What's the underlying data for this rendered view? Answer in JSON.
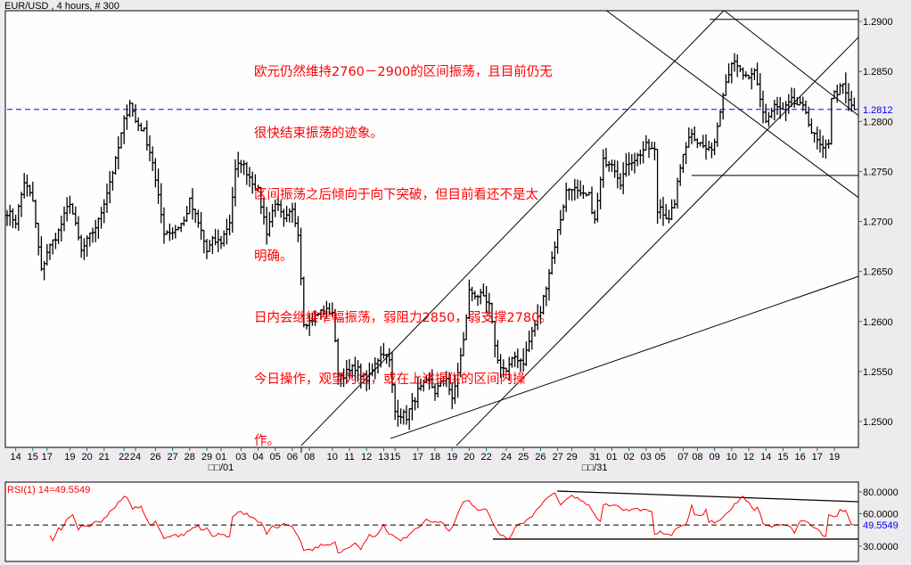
{
  "header": {
    "title": "EUR/USD , 4 hours, # 300"
  },
  "annotation": {
    "lines": [
      "欧元仍然维持2760－2900的区间振荡，且目前仍无",
      "很快结束振荡的迹象。",
      "区间振荡之后倾向于向下突破，但目前看还不是太",
      "明确。",
      "日内会继续窄幅振荡，弱阻力2850，弱支撑2780。",
      "今日操作，观望为主，或在上述提供的区间内操",
      "作。"
    ],
    "color": "#FF0000"
  },
  "chart_data": [
    {
      "type": "ohlc-bar",
      "title": "EUR/USD , 4 hours, # 300",
      "bar_count": 298,
      "ylim": [
        1.2475,
        1.291
      ],
      "y_ticks": [
        "1.2900",
        "1.2850",
        "1.2800",
        "1.2750",
        "1.2700",
        "1.2650",
        "1.2600",
        "1.2550",
        "1.2500"
      ],
      "last_price": {
        "label": "1.2812",
        "value": 1.2812,
        "color": "#0000FF"
      },
      "x_ticks": [
        {
          "bar": 3,
          "label": "14"
        },
        {
          "bar": 9,
          "label": "15"
        },
        {
          "bar": 14,
          "label": "17"
        },
        {
          "bar": 22,
          "label": "19"
        },
        {
          "bar": 28,
          "label": "20"
        },
        {
          "bar": 34,
          "label": "21"
        },
        {
          "bar": 41,
          "label": "22"
        },
        {
          "bar": 45,
          "label": "24"
        },
        {
          "bar": 52,
          "label": "26"
        },
        {
          "bar": 58,
          "label": "27"
        },
        {
          "bar": 64,
          "label": "28"
        },
        {
          "bar": 70,
          "label": "29"
        },
        {
          "bar": 75,
          "label": "01"
        },
        {
          "bar": 82,
          "label": "03"
        },
        {
          "bar": 88,
          "label": "04"
        },
        {
          "bar": 94,
          "label": "05"
        },
        {
          "bar": 100,
          "label": "06"
        },
        {
          "bar": 106,
          "label": "08"
        },
        {
          "bar": 114,
          "label": "10"
        },
        {
          "bar": 120,
          "label": "11"
        },
        {
          "bar": 126,
          "label": "12"
        },
        {
          "bar": 132,
          "label": "13"
        },
        {
          "bar": 136,
          "label": "15"
        },
        {
          "bar": 144,
          "label": "17"
        },
        {
          "bar": 150,
          "label": "18"
        },
        {
          "bar": 156,
          "label": "19"
        },
        {
          "bar": 162,
          "label": "20"
        },
        {
          "bar": 168,
          "label": "22"
        },
        {
          "bar": 175,
          "label": "24"
        },
        {
          "bar": 181,
          "label": "25"
        },
        {
          "bar": 187,
          "label": "26"
        },
        {
          "bar": 193,
          "label": "27"
        },
        {
          "bar": 198,
          "label": "29"
        },
        {
          "bar": 206,
          "label": "31"
        },
        {
          "bar": 212,
          "label": "01"
        },
        {
          "bar": 218,
          "label": "02"
        },
        {
          "bar": 224,
          "label": "03"
        },
        {
          "bar": 229,
          "label": "05"
        },
        {
          "bar": 237,
          "label": "07"
        },
        {
          "bar": 242,
          "label": "08"
        },
        {
          "bar": 248,
          "label": "09"
        },
        {
          "bar": 254,
          "label": "10"
        },
        {
          "bar": 260,
          "label": "12"
        },
        {
          "bar": 266,
          "label": "14"
        },
        {
          "bar": 272,
          "label": "15"
        },
        {
          "bar": 278,
          "label": "16"
        },
        {
          "bar": 284,
          "label": "17"
        },
        {
          "bar": 290,
          "label": "19"
        }
      ],
      "month_labels": [
        {
          "bar": 75,
          "label": "□□/01"
        },
        {
          "bar": 206,
          "label": "□□/31"
        }
      ],
      "close_path": [
        [
          0,
          1.271
        ],
        [
          3,
          1.27
        ],
        [
          6,
          1.274
        ],
        [
          9,
          1.272
        ],
        [
          12,
          1.265
        ],
        [
          14,
          1.267
        ],
        [
          18,
          1.269
        ],
        [
          22,
          1.272
        ],
        [
          26,
          1.267
        ],
        [
          28,
          1.268
        ],
        [
          32,
          1.27
        ],
        [
          34,
          1.272
        ],
        [
          38,
          1.276
        ],
        [
          41,
          1.28
        ],
        [
          43,
          1.282
        ],
        [
          45,
          1.28
        ],
        [
          48,
          1.279
        ],
        [
          51,
          1.276
        ],
        [
          52,
          1.274
        ],
        [
          55,
          1.269
        ],
        [
          58,
          1.269
        ],
        [
          62,
          1.27
        ],
        [
          64,
          1.272
        ],
        [
          68,
          1.269
        ],
        [
          70,
          1.267
        ],
        [
          72,
          1.268
        ],
        [
          75,
          1.268
        ],
        [
          78,
          1.27
        ],
        [
          80,
          1.275
        ],
        [
          82,
          1.276
        ],
        [
          86,
          1.274
        ],
        [
          88,
          1.273
        ],
        [
          91,
          1.269
        ],
        [
          94,
          1.272
        ],
        [
          97,
          1.27
        ],
        [
          100,
          1.271
        ],
        [
          102,
          1.269
        ],
        [
          104,
          1.26
        ],
        [
          106,
          1.26
        ],
        [
          110,
          1.261
        ],
        [
          114,
          1.261
        ],
        [
          116,
          1.2545
        ],
        [
          120,
          1.255
        ],
        [
          122,
          1.2555
        ],
        [
          126,
          1.254
        ],
        [
          129,
          1.256
        ],
        [
          132,
          1.257
        ],
        [
          134,
          1.256
        ],
        [
          136,
          1.251
        ],
        [
          140,
          1.2505
        ],
        [
          144,
          1.253
        ],
        [
          148,
          1.254
        ],
        [
          150,
          1.253
        ],
        [
          154,
          1.2545
        ],
        [
          156,
          1.252
        ],
        [
          160,
          1.258
        ],
        [
          162,
          1.263
        ],
        [
          166,
          1.2625
        ],
        [
          169,
          1.2615
        ],
        [
          172,
          1.256
        ],
        [
          175,
          1.255
        ],
        [
          178,
          1.2565
        ],
        [
          181,
          1.256
        ],
        [
          184,
          1.259
        ],
        [
          187,
          1.261
        ],
        [
          190,
          1.265
        ],
        [
          193,
          1.269
        ],
        [
          196,
          1.273
        ],
        [
          198,
          1.2735
        ],
        [
          201,
          1.2725
        ],
        [
          204,
          1.2725
        ],
        [
          206,
          1.27
        ],
        [
          209,
          1.276
        ],
        [
          212,
          1.276
        ],
        [
          215,
          1.274
        ],
        [
          218,
          1.276
        ],
        [
          221,
          1.2765
        ],
        [
          224,
          1.2775
        ],
        [
          227,
          1.277
        ],
        [
          228,
          1.271
        ],
        [
          229,
          1.2715
        ],
        [
          232,
          1.27
        ],
        [
          234,
          1.272
        ],
        [
          237,
          1.277
        ],
        [
          240,
          1.279
        ],
        [
          242,
          1.278
        ],
        [
          246,
          1.277
        ],
        [
          248,
          1.278
        ],
        [
          251,
          1.283
        ],
        [
          254,
          1.286
        ],
        [
          257,
          1.285
        ],
        [
          260,
          1.284
        ],
        [
          262,
          1.285
        ],
        [
          265,
          1.281
        ],
        [
          266,
          1.28
        ],
        [
          269,
          1.2815
        ],
        [
          272,
          1.281
        ],
        [
          275,
          1.282
        ],
        [
          278,
          1.2815
        ],
        [
          280,
          1.281
        ],
        [
          282,
          1.279
        ],
        [
          284,
          1.278
        ],
        [
          286,
          1.277
        ],
        [
          288,
          1.278
        ],
        [
          289,
          1.2825
        ],
        [
          291,
          1.283
        ],
        [
          293,
          1.2835
        ],
        [
          295,
          1.282
        ],
        [
          297,
          1.2812
        ]
      ],
      "trend_lines": [
        {
          "from": [
            103.1,
            1.2476
          ],
          "to": [
            251.3,
            1.2911
          ]
        },
        {
          "from": [
            157.5,
            1.2476
          ],
          "to": [
            298.4,
            1.2884
          ]
        },
        {
          "from": [
            134.4,
            1.2483
          ],
          "to": [
            298.4,
            1.2645
          ]
        },
        {
          "from": [
            210,
            1.2911
          ],
          "to": [
            298.4,
            1.2724
          ]
        },
        {
          "from": [
            251.3,
            1.2911
          ],
          "to": [
            298.4,
            1.2806
          ]
        },
        {
          "from": [
            246.3,
            1.2902
          ],
          "to": [
            298.4,
            1.2902
          ]
        },
        {
          "from": [
            240,
            1.2746
          ],
          "to": [
            298.4,
            1.2746
          ]
        }
      ]
    },
    {
      "type": "line",
      "title": "RSI(1) 14=49.5549",
      "ylim": [
        20,
        90
      ],
      "y_ticks": [
        "80.0000",
        "60.0000",
        "30.0000"
      ],
      "last_value": {
        "label": "49.5549",
        "value": 49.5549,
        "color": "#0000FF"
      },
      "series_color": "#FF0000",
      "values": [
        [
          15,
          40
        ],
        [
          16,
          35
        ],
        [
          18,
          47
        ],
        [
          19,
          45
        ],
        [
          21,
          55
        ],
        [
          22,
          57
        ],
        [
          23,
          59
        ],
        [
          25,
          45
        ],
        [
          26,
          49
        ],
        [
          29,
          48
        ],
        [
          31,
          53
        ],
        [
          33,
          52
        ],
        [
          37,
          64
        ],
        [
          39,
          71
        ],
        [
          41,
          76
        ],
        [
          42,
          75
        ],
        [
          44,
          64
        ],
        [
          47,
          67
        ],
        [
          50,
          50
        ],
        [
          52,
          53
        ],
        [
          55,
          37
        ],
        [
          58,
          40
        ],
        [
          62,
          40
        ],
        [
          65,
          47
        ],
        [
          67,
          49
        ],
        [
          68,
          45
        ],
        [
          70,
          47
        ],
        [
          72,
          39
        ],
        [
          74,
          42
        ],
        [
          78,
          39
        ],
        [
          79,
          57
        ],
        [
          82,
          62
        ],
        [
          87,
          55
        ],
        [
          89,
          52
        ],
        [
          91,
          41
        ],
        [
          93,
          49
        ],
        [
          95,
          47
        ],
        [
          97,
          51
        ],
        [
          100,
          48
        ],
        [
          102,
          39
        ],
        [
          104,
          26
        ],
        [
          107,
          26
        ],
        [
          110,
          32
        ],
        [
          113,
          31
        ],
        [
          115,
          34
        ],
        [
          116,
          24
        ],
        [
          119,
          28
        ],
        [
          122,
          33
        ],
        [
          124,
          27
        ],
        [
          127,
          41
        ],
        [
          129,
          39
        ],
        [
          132,
          50
        ],
        [
          134,
          41
        ],
        [
          138,
          35
        ],
        [
          141,
          41
        ],
        [
          144,
          47
        ],
        [
          147,
          55
        ],
        [
          149,
          52
        ],
        [
          153,
          51
        ],
        [
          155,
          44
        ],
        [
          157,
          53
        ],
        [
          160,
          71
        ],
        [
          162,
          72
        ],
        [
          165,
          63
        ],
        [
          168,
          64
        ],
        [
          170,
          53
        ],
        [
          173,
          40
        ],
        [
          174,
          40
        ],
        [
          176,
          37
        ],
        [
          179,
          50
        ],
        [
          181,
          51
        ],
        [
          184,
          57
        ],
        [
          188,
          71
        ],
        [
          192,
          79
        ],
        [
          194,
          68
        ],
        [
          198,
          77
        ],
        [
          201,
          72
        ],
        [
          204,
          68
        ],
        [
          206,
          59
        ],
        [
          208,
          53
        ],
        [
          209,
          68
        ],
        [
          213,
          68
        ],
        [
          216,
          63
        ],
        [
          219,
          64
        ],
        [
          223,
          64
        ],
        [
          226,
          62
        ],
        [
          227,
          41
        ],
        [
          229,
          44
        ],
        [
          233,
          40
        ],
        [
          235,
          47
        ],
        [
          238,
          50
        ],
        [
          240,
          68
        ],
        [
          241,
          59
        ],
        [
          244,
          59
        ],
        [
          245,
          64
        ],
        [
          246,
          52
        ],
        [
          249,
          53
        ],
        [
          251,
          57
        ],
        [
          253,
          62
        ],
        [
          257,
          74
        ],
        [
          258,
          76
        ],
        [
          262,
          63
        ],
        [
          263,
          66
        ],
        [
          265,
          51
        ],
        [
          267,
          49
        ],
        [
          269,
          49
        ],
        [
          272,
          50
        ],
        [
          274,
          49
        ],
        [
          276,
          42
        ],
        [
          278,
          53
        ],
        [
          280,
          53
        ],
        [
          283,
          47
        ],
        [
          287,
          39
        ],
        [
          288,
          59
        ],
        [
          290,
          57
        ],
        [
          291,
          58
        ],
        [
          292,
          64
        ],
        [
          294,
          63
        ],
        [
          296,
          50
        ],
        [
          297,
          49.55
        ]
      ],
      "trend_lines": [
        {
          "from": [
            192.8,
            80.8
          ],
          "to": [
            298.4,
            71
          ]
        },
        {
          "from": [
            170.3,
            36.6
          ],
          "to": [
            298.4,
            36.6
          ]
        }
      ]
    }
  ]
}
